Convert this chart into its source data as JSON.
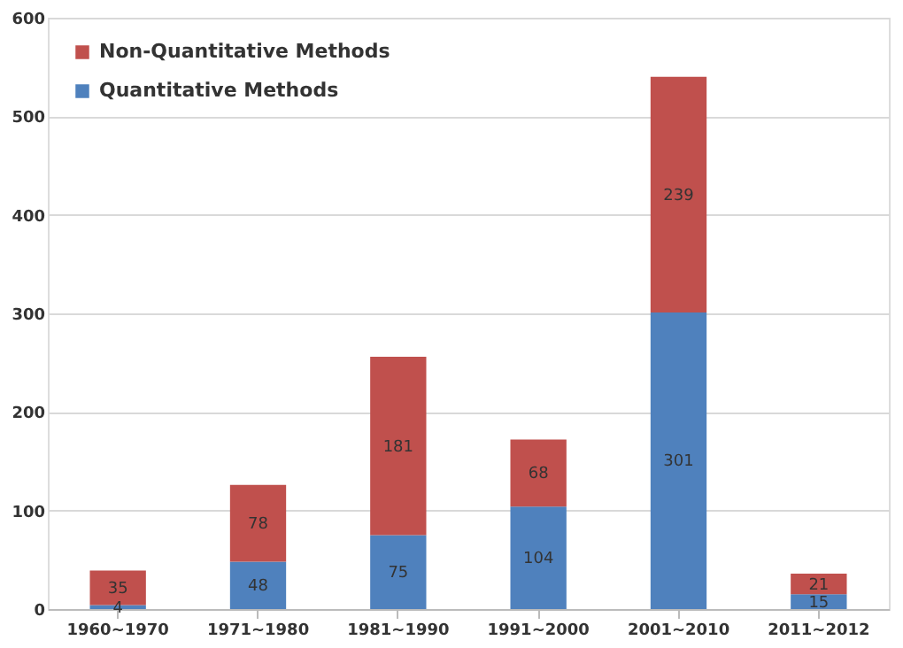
{
  "chart_data": {
    "type": "bar",
    "stacked": true,
    "categories": [
      "1960~1970",
      "1971~1980",
      "1981~1990",
      "1991~2000",
      "2001~2010",
      "2011~2012"
    ],
    "series": [
      {
        "name": "Quantitative Methods",
        "color": "#4f81bd",
        "values": [
          4,
          48,
          75,
          104,
          301,
          15
        ]
      },
      {
        "name": "Non-Quantitative Methods",
        "color": "#c0504d",
        "values": [
          35,
          78,
          181,
          68,
          239,
          21
        ]
      }
    ],
    "ylim": [
      0,
      600
    ],
    "yticks": [
      0,
      100,
      200,
      300,
      400,
      500,
      600
    ],
    "grid": "y",
    "legend": "top left",
    "data_labels": true
  }
}
